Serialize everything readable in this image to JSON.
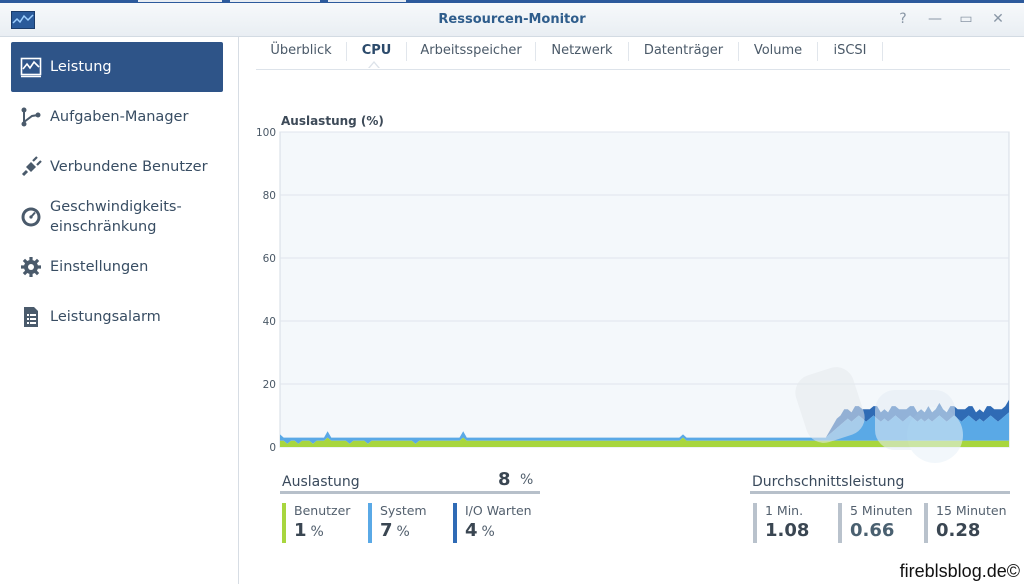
{
  "window": {
    "title": "Ressourcen-Monitor"
  },
  "titlebar_buttons": [
    {
      "name": "help-button",
      "icon": "help-icon",
      "glyph": "?"
    },
    {
      "name": "minimize-button",
      "icon": "minimize-icon",
      "glyph": "—"
    },
    {
      "name": "maximize-button",
      "icon": "maximize-icon",
      "glyph": "▭"
    },
    {
      "name": "close-button",
      "icon": "close-icon",
      "glyph": "✕"
    }
  ],
  "sidebar": {
    "items": [
      {
        "label": "Leistung",
        "icon": "performance-chart-icon",
        "active": true
      },
      {
        "label": "Aufgaben-Manager",
        "icon": "task-manager-icon",
        "active": false
      },
      {
        "label": "Verbundene Benutzer",
        "icon": "plug-icon",
        "active": false
      },
      {
        "label": "Geschwindigkeits-",
        "label2": "einschränkung",
        "icon": "speedometer-icon",
        "active": false
      },
      {
        "label": "Einstellungen",
        "icon": "gear-icon",
        "active": false
      },
      {
        "label": "Leistungsalarm",
        "icon": "alarm-list-icon",
        "active": false
      }
    ]
  },
  "tabs": [
    {
      "label": "Überblick",
      "active": false
    },
    {
      "label": "CPU",
      "active": true
    },
    {
      "label": "Arbeitsspeicher",
      "active": false
    },
    {
      "label": "Netzwerk",
      "active": false
    },
    {
      "label": "Datenträger",
      "active": false
    },
    {
      "label": "Volume",
      "active": false
    },
    {
      "label": "iSCSI",
      "active": false
    }
  ],
  "chart_data": {
    "type": "area",
    "title": "Auslastung (%)",
    "ylim": [
      0,
      100
    ],
    "yticks": [
      "100",
      "80",
      "60",
      "40",
      "20",
      "0"
    ],
    "grid": true,
    "colors": {
      "user": "#a8d63e",
      "system": "#5aa9e6",
      "iowait": "#2f6bb5"
    },
    "series": [
      {
        "values": [
          2,
          2,
          1,
          2,
          2,
          1,
          2,
          2,
          2,
          1,
          2,
          2,
          2,
          3,
          2,
          2,
          2,
          2,
          2,
          1,
          2,
          2,
          2,
          2,
          1,
          2,
          2,
          2,
          2,
          2,
          2,
          2,
          2,
          2,
          2,
          2,
          2,
          1,
          2,
          2,
          2,
          2,
          2,
          2,
          2,
          2,
          2,
          2,
          2,
          2,
          3,
          2,
          2,
          2,
          2,
          2,
          2,
          2,
          2,
          2,
          2,
          2,
          2,
          2,
          2,
          2,
          2,
          2,
          2,
          2,
          2,
          2,
          2,
          2,
          2,
          2,
          2,
          2,
          2,
          2,
          2,
          2,
          2,
          2,
          2,
          2,
          2,
          2,
          2,
          2,
          2,
          2,
          2,
          2,
          2,
          2,
          2,
          2,
          2,
          2,
          2,
          2,
          2,
          2,
          2,
          2,
          2,
          2,
          2,
          2,
          3,
          2,
          2,
          2,
          2,
          2,
          2,
          2,
          2,
          2,
          2,
          2,
          2,
          2,
          2,
          2,
          2,
          2,
          2,
          2,
          2,
          2,
          2,
          2,
          2,
          2,
          2,
          2,
          2,
          2,
          2,
          2,
          2,
          2,
          2,
          2,
          2,
          2,
          2,
          2,
          2,
          2,
          2,
          2,
          2,
          2,
          2,
          2,
          2,
          2,
          2,
          2,
          2,
          2,
          2,
          2,
          2,
          2,
          2,
          2,
          2,
          2,
          2,
          2,
          2,
          2,
          2,
          2,
          2,
          2,
          2,
          2,
          2,
          2,
          2,
          2,
          2,
          2,
          2,
          2,
          2,
          2,
          2,
          2,
          2,
          2,
          2,
          2,
          2,
          2
        ]
      },
      {
        "values": [
          2,
          1,
          2,
          1,
          1,
          2,
          1,
          1,
          1,
          2,
          1,
          1,
          1,
          2,
          1,
          1,
          1,
          1,
          1,
          2,
          1,
          1,
          1,
          1,
          2,
          1,
          1,
          1,
          1,
          1,
          1,
          1,
          1,
          1,
          1,
          1,
          1,
          2,
          1,
          1,
          1,
          1,
          1,
          1,
          1,
          1,
          1,
          1,
          1,
          1,
          2,
          1,
          1,
          1,
          1,
          1,
          1,
          1,
          1,
          1,
          1,
          1,
          1,
          1,
          1,
          1,
          1,
          1,
          1,
          1,
          1,
          1,
          1,
          1,
          1,
          1,
          1,
          1,
          1,
          1,
          1,
          1,
          1,
          1,
          1,
          1,
          1,
          1,
          1,
          1,
          1,
          1,
          1,
          1,
          1,
          1,
          1,
          1,
          1,
          1,
          1,
          1,
          1,
          1,
          1,
          1,
          1,
          1,
          1,
          1,
          1,
          1,
          1,
          1,
          1,
          1,
          1,
          1,
          1,
          1,
          1,
          1,
          1,
          1,
          1,
          1,
          1,
          1,
          1,
          1,
          1,
          1,
          1,
          1,
          1,
          1,
          1,
          1,
          1,
          1,
          1,
          1,
          1,
          1,
          1,
          1,
          1,
          1,
          1,
          1,
          2,
          3,
          4,
          5,
          6,
          7,
          6,
          7,
          8,
          7,
          6,
          7,
          8,
          7,
          6,
          7,
          6,
          7,
          8,
          7,
          6,
          7,
          8,
          7,
          6,
          7,
          6,
          7,
          6,
          7,
          8,
          7,
          6,
          7,
          8,
          7,
          6,
          7,
          8,
          7,
          6,
          7,
          6,
          7,
          8,
          7,
          6,
          7,
          8,
          9
        ]
      },
      {
        "values": [
          0,
          0,
          0,
          0,
          0,
          0,
          0,
          0,
          0,
          0,
          0,
          0,
          0,
          0,
          0,
          0,
          0,
          0,
          0,
          0,
          0,
          0,
          0,
          0,
          0,
          0,
          0,
          0,
          0,
          0,
          0,
          0,
          0,
          0,
          0,
          0,
          0,
          0,
          0,
          0,
          0,
          0,
          0,
          0,
          0,
          0,
          0,
          0,
          0,
          0,
          0,
          0,
          0,
          0,
          0,
          0,
          0,
          0,
          0,
          0,
          0,
          0,
          0,
          0,
          0,
          0,
          0,
          0,
          0,
          0,
          0,
          0,
          0,
          0,
          0,
          0,
          0,
          0,
          0,
          0,
          0,
          0,
          0,
          0,
          0,
          0,
          0,
          0,
          0,
          0,
          0,
          0,
          0,
          0,
          0,
          0,
          0,
          0,
          0,
          0,
          0,
          0,
          0,
          0,
          0,
          0,
          0,
          0,
          0,
          0,
          0,
          0,
          0,
          0,
          0,
          0,
          0,
          0,
          0,
          0,
          0,
          0,
          0,
          0,
          0,
          0,
          0,
          0,
          0,
          0,
          0,
          0,
          0,
          0,
          0,
          0,
          0,
          0,
          0,
          0,
          0,
          0,
          0,
          0,
          0,
          0,
          0,
          0,
          0,
          0,
          1,
          2,
          3,
          3,
          4,
          3,
          3,
          4,
          3,
          3,
          4,
          3,
          3,
          4,
          3,
          3,
          3,
          4,
          3,
          3,
          4,
          3,
          3,
          4,
          3,
          3,
          3,
          4,
          3,
          3,
          4,
          3,
          3,
          4,
          3,
          3,
          4,
          3,
          3,
          4,
          3,
          3,
          3,
          4,
          3,
          3,
          4,
          3,
          3,
          4
        ]
      }
    ]
  },
  "utilization": {
    "title": "Auslastung",
    "value": "8",
    "unit": "%",
    "items": [
      {
        "label": "Benutzer",
        "value": "1",
        "unit": "%",
        "color": "#a8d63e"
      },
      {
        "label": "System",
        "value": "7",
        "unit": "%",
        "color": "#5aa9e6"
      },
      {
        "label": "I/O Warten",
        "value": "4",
        "unit": "%",
        "color": "#2f6bb5"
      }
    ]
  },
  "load_average": {
    "title": "Durchschnittsleistung",
    "items": [
      {
        "label": "1 Min.",
        "value": "1.08",
        "color": "#b9c2cc"
      },
      {
        "label": "5 Minuten",
        "value": "0.66",
        "color": "#b9c2cc"
      },
      {
        "label": "15 Minuten",
        "value": "0.28",
        "color": "#b9c2cc"
      }
    ]
  },
  "watermark_text": "fireblsblog.de©"
}
